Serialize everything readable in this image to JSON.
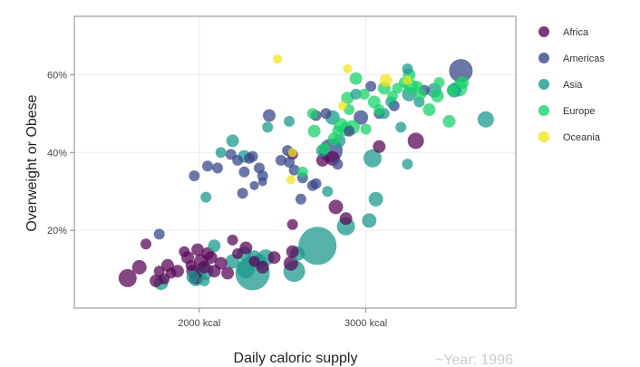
{
  "chart_data": {
    "type": "scatter",
    "title": "",
    "xlabel": "Daily caloric supply",
    "ylabel": "Overweight or Obese",
    "xlim": [
      1250,
      3900
    ],
    "ylim": [
      0,
      0.75
    ],
    "x_ticks": [
      {
        "value": 2000,
        "label": "2000 kcal"
      },
      {
        "value": 3000,
        "label": "3000 kcal"
      }
    ],
    "y_ticks": [
      {
        "value": 0.2,
        "label": "20%"
      },
      {
        "value": 0.4,
        "label": "40%"
      },
      {
        "value": 0.6,
        "label": "60%"
      }
    ],
    "grid": true,
    "legend_position": "right",
    "annotation": "~Year: 1996",
    "point_opacity": 0.75,
    "series": [
      {
        "name": "Africa",
        "color": "#5b0a5b",
        "points": [
          [
            1570,
            0.077,
            10
          ],
          [
            1640,
            0.105,
            8
          ],
          [
            1680,
            0.165,
            6
          ],
          [
            1740,
            0.07,
            7
          ],
          [
            1760,
            0.095,
            6
          ],
          [
            1790,
            0.075,
            6
          ],
          [
            1810,
            0.11,
            7
          ],
          [
            1830,
            0.09,
            6
          ],
          [
            1870,
            0.095,
            7
          ],
          [
            1910,
            0.145,
            6
          ],
          [
            1930,
            0.13,
            7
          ],
          [
            1950,
            0.11,
            6
          ],
          [
            1960,
            0.095,
            7
          ],
          [
            1980,
            0.078,
            7
          ],
          [
            1990,
            0.15,
            7
          ],
          [
            2010,
            0.12,
            8
          ],
          [
            2030,
            0.105,
            7
          ],
          [
            2050,
            0.14,
            7
          ],
          [
            2070,
            0.13,
            7
          ],
          [
            2090,
            0.095,
            7
          ],
          [
            2130,
            0.115,
            7
          ],
          [
            2170,
            0.09,
            7
          ],
          [
            2200,
            0.175,
            6
          ],
          [
            2230,
            0.14,
            6
          ],
          [
            2280,
            0.155,
            7
          ],
          [
            2330,
            0.12,
            6
          ],
          [
            2380,
            0.105,
            7
          ],
          [
            2450,
            0.13,
            7
          ],
          [
            2550,
            0.115,
            8
          ],
          [
            2560,
            0.145,
            7
          ],
          [
            2560,
            0.215,
            6
          ],
          [
            2740,
            0.38,
            7
          ],
          [
            2820,
            0.26,
            8
          ],
          [
            2880,
            0.23,
            7
          ],
          [
            3080,
            0.415,
            7
          ],
          [
            3300,
            0.43,
            9
          ],
          [
            2800,
            0.385,
            8
          ],
          [
            2560,
            0.395,
            6
          ]
        ]
      },
      {
        "name": "Americas",
        "color": "#3a4a8a",
        "points": [
          [
            1760,
            0.19,
            6
          ],
          [
            1970,
            0.34,
            6
          ],
          [
            2050,
            0.365,
            6
          ],
          [
            2110,
            0.36,
            6
          ],
          [
            2190,
            0.395,
            6
          ],
          [
            2230,
            0.38,
            6
          ],
          [
            2260,
            0.295,
            6
          ],
          [
            2270,
            0.35,
            6
          ],
          [
            2300,
            0.385,
            6
          ],
          [
            2320,
            0.39,
            6
          ],
          [
            2330,
            0.315,
            5
          ],
          [
            2360,
            0.36,
            6
          ],
          [
            2380,
            0.34,
            6
          ],
          [
            2380,
            0.325,
            5
          ],
          [
            2420,
            0.495,
            7
          ],
          [
            2490,
            0.38,
            6
          ],
          [
            2530,
            0.405,
            6
          ],
          [
            2540,
            0.375,
            6
          ],
          [
            2570,
            0.355,
            6
          ],
          [
            2610,
            0.28,
            6
          ],
          [
            2620,
            0.335,
            6
          ],
          [
            2680,
            0.315,
            6
          ],
          [
            2700,
            0.32,
            6
          ],
          [
            2700,
            0.495,
            6
          ],
          [
            2760,
            0.5,
            6
          ],
          [
            2790,
            0.405,
            13
          ],
          [
            2830,
            0.37,
            6
          ],
          [
            2900,
            0.455,
            6
          ],
          [
            2970,
            0.49,
            8
          ],
          [
            3030,
            0.57,
            6
          ],
          [
            3080,
            0.5,
            6
          ],
          [
            3170,
            0.52,
            6
          ],
          [
            3350,
            0.56,
            6
          ],
          [
            3570,
            0.61,
            13
          ]
        ]
      },
      {
        "name": "Asia",
        "color": "#1c9a8e",
        "points": [
          [
            1770,
            0.065,
            8
          ],
          [
            1960,
            0.08,
            7
          ],
          [
            1980,
            0.075,
            8
          ],
          [
            1990,
            0.09,
            8
          ],
          [
            2030,
            0.095,
            10
          ],
          [
            2030,
            0.07,
            6
          ],
          [
            2040,
            0.285,
            6
          ],
          [
            2090,
            0.16,
            7
          ],
          [
            2130,
            0.4,
            6
          ],
          [
            2200,
            0.43,
            7
          ],
          [
            2200,
            0.12,
            8
          ],
          [
            2270,
            0.39,
            7
          ],
          [
            2270,
            0.14,
            8
          ],
          [
            2280,
            0.1,
            10
          ],
          [
            2320,
            0.09,
            19
          ],
          [
            2330,
            0.13,
            8
          ],
          [
            2360,
            0.12,
            8
          ],
          [
            2400,
            0.13,
            9
          ],
          [
            2410,
            0.465,
            6
          ],
          [
            2540,
            0.48,
            6
          ],
          [
            2570,
            0.095,
            12
          ],
          [
            2590,
            0.14,
            8
          ],
          [
            2710,
            0.16,
            21
          ],
          [
            2740,
            0.405,
            7
          ],
          [
            2770,
            0.3,
            6
          ],
          [
            2800,
            0.49,
            8
          ],
          [
            2840,
            0.43,
            7
          ],
          [
            2880,
            0.21,
            10
          ],
          [
            2940,
            0.55,
            6
          ],
          [
            3020,
            0.225,
            8
          ],
          [
            3040,
            0.385,
            10
          ],
          [
            3060,
            0.28,
            8
          ],
          [
            3110,
            0.5,
            6
          ],
          [
            3150,
            0.53,
            6
          ],
          [
            3210,
            0.465,
            6
          ],
          [
            3260,
            0.55,
            8
          ],
          [
            3250,
            0.37,
            6
          ],
          [
            3250,
            0.615,
            6
          ],
          [
            3320,
            0.53,
            6
          ],
          [
            3410,
            0.56,
            8
          ],
          [
            3530,
            0.56,
            8
          ],
          [
            3720,
            0.485,
            9
          ]
        ]
      },
      {
        "name": "Europe",
        "color": "#19d36a",
        "points": [
          [
            2620,
            0.35,
            6
          ],
          [
            2680,
            0.5,
            6
          ],
          [
            2690,
            0.455,
            7
          ],
          [
            2750,
            0.41,
            6
          ],
          [
            2810,
            0.435,
            7
          ],
          [
            2830,
            0.455,
            6
          ],
          [
            2850,
            0.47,
            8
          ],
          [
            2880,
            0.46,
            8
          ],
          [
            2890,
            0.54,
            7
          ],
          [
            2900,
            0.51,
            6
          ],
          [
            2920,
            0.465,
            8
          ],
          [
            2940,
            0.59,
            7
          ],
          [
            2990,
            0.55,
            6
          ],
          [
            3000,
            0.46,
            6
          ],
          [
            3050,
            0.53,
            7
          ],
          [
            3080,
            0.51,
            6
          ],
          [
            3110,
            0.565,
            7
          ],
          [
            3160,
            0.545,
            6
          ],
          [
            3190,
            0.565,
            6
          ],
          [
            3230,
            0.58,
            6
          ],
          [
            3260,
            0.6,
            7
          ],
          [
            3310,
            0.57,
            6
          ],
          [
            3330,
            0.55,
            6
          ],
          [
            3380,
            0.51,
            7
          ],
          [
            3430,
            0.545,
            7
          ],
          [
            3500,
            0.48,
            7
          ],
          [
            3520,
            0.56,
            6
          ],
          [
            3560,
            0.565,
            9
          ],
          [
            3580,
            0.58,
            7
          ],
          [
            3440,
            0.58,
            6
          ],
          [
            3270,
            0.57,
            8
          ]
        ]
      },
      {
        "name": "Oceania",
        "color": "#f1e51a",
        "points": [
          [
            2470,
            0.64,
            5
          ],
          [
            2550,
            0.33,
            5
          ],
          [
            2560,
            0.4,
            5
          ],
          [
            2860,
            0.52,
            5
          ],
          [
            2890,
            0.615,
            5
          ],
          [
            3120,
            0.585,
            7
          ],
          [
            3250,
            0.585,
            5
          ]
        ]
      }
    ]
  }
}
